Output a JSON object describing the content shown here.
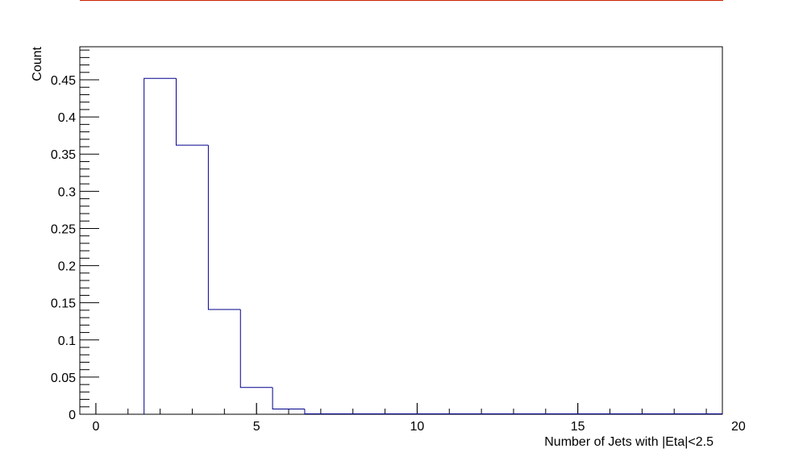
{
  "chart_data": {
    "type": "bar",
    "subtype": "histogram-step",
    "title": "",
    "xlabel": "Number of Jets with |Eta|<2.5",
    "ylabel": "Count",
    "xlim": [
      -0.5,
      19.5
    ],
    "ylim": [
      0,
      0.4945
    ],
    "x_ticks": [
      0,
      5,
      10,
      15,
      20
    ],
    "x_tick_labels": [
      "0",
      "5",
      "10",
      "15",
      "20"
    ],
    "y_ticks": [
      0,
      0.05,
      0.1,
      0.15,
      0.2,
      0.25,
      0.3,
      0.35,
      0.4,
      0.45
    ],
    "y_tick_labels": [
      "0",
      "0.05",
      "0.1",
      "0.15",
      "0.2",
      "0.25",
      "0.3",
      "0.35",
      "0.4",
      "0.45"
    ],
    "grid": false,
    "legend": "none",
    "bins": [
      {
        "low": 1.5,
        "high": 2.5,
        "value": 0.452
      },
      {
        "low": 2.5,
        "high": 3.5,
        "value": 0.362
      },
      {
        "low": 3.5,
        "high": 4.5,
        "value": 0.141
      },
      {
        "low": 4.5,
        "high": 5.5,
        "value": 0.036
      },
      {
        "low": 5.5,
        "high": 6.5,
        "value": 0.007
      }
    ],
    "colors": {
      "histogram_line": "#00008b",
      "top_bar": "#cc2200",
      "axis": "#000000"
    }
  }
}
